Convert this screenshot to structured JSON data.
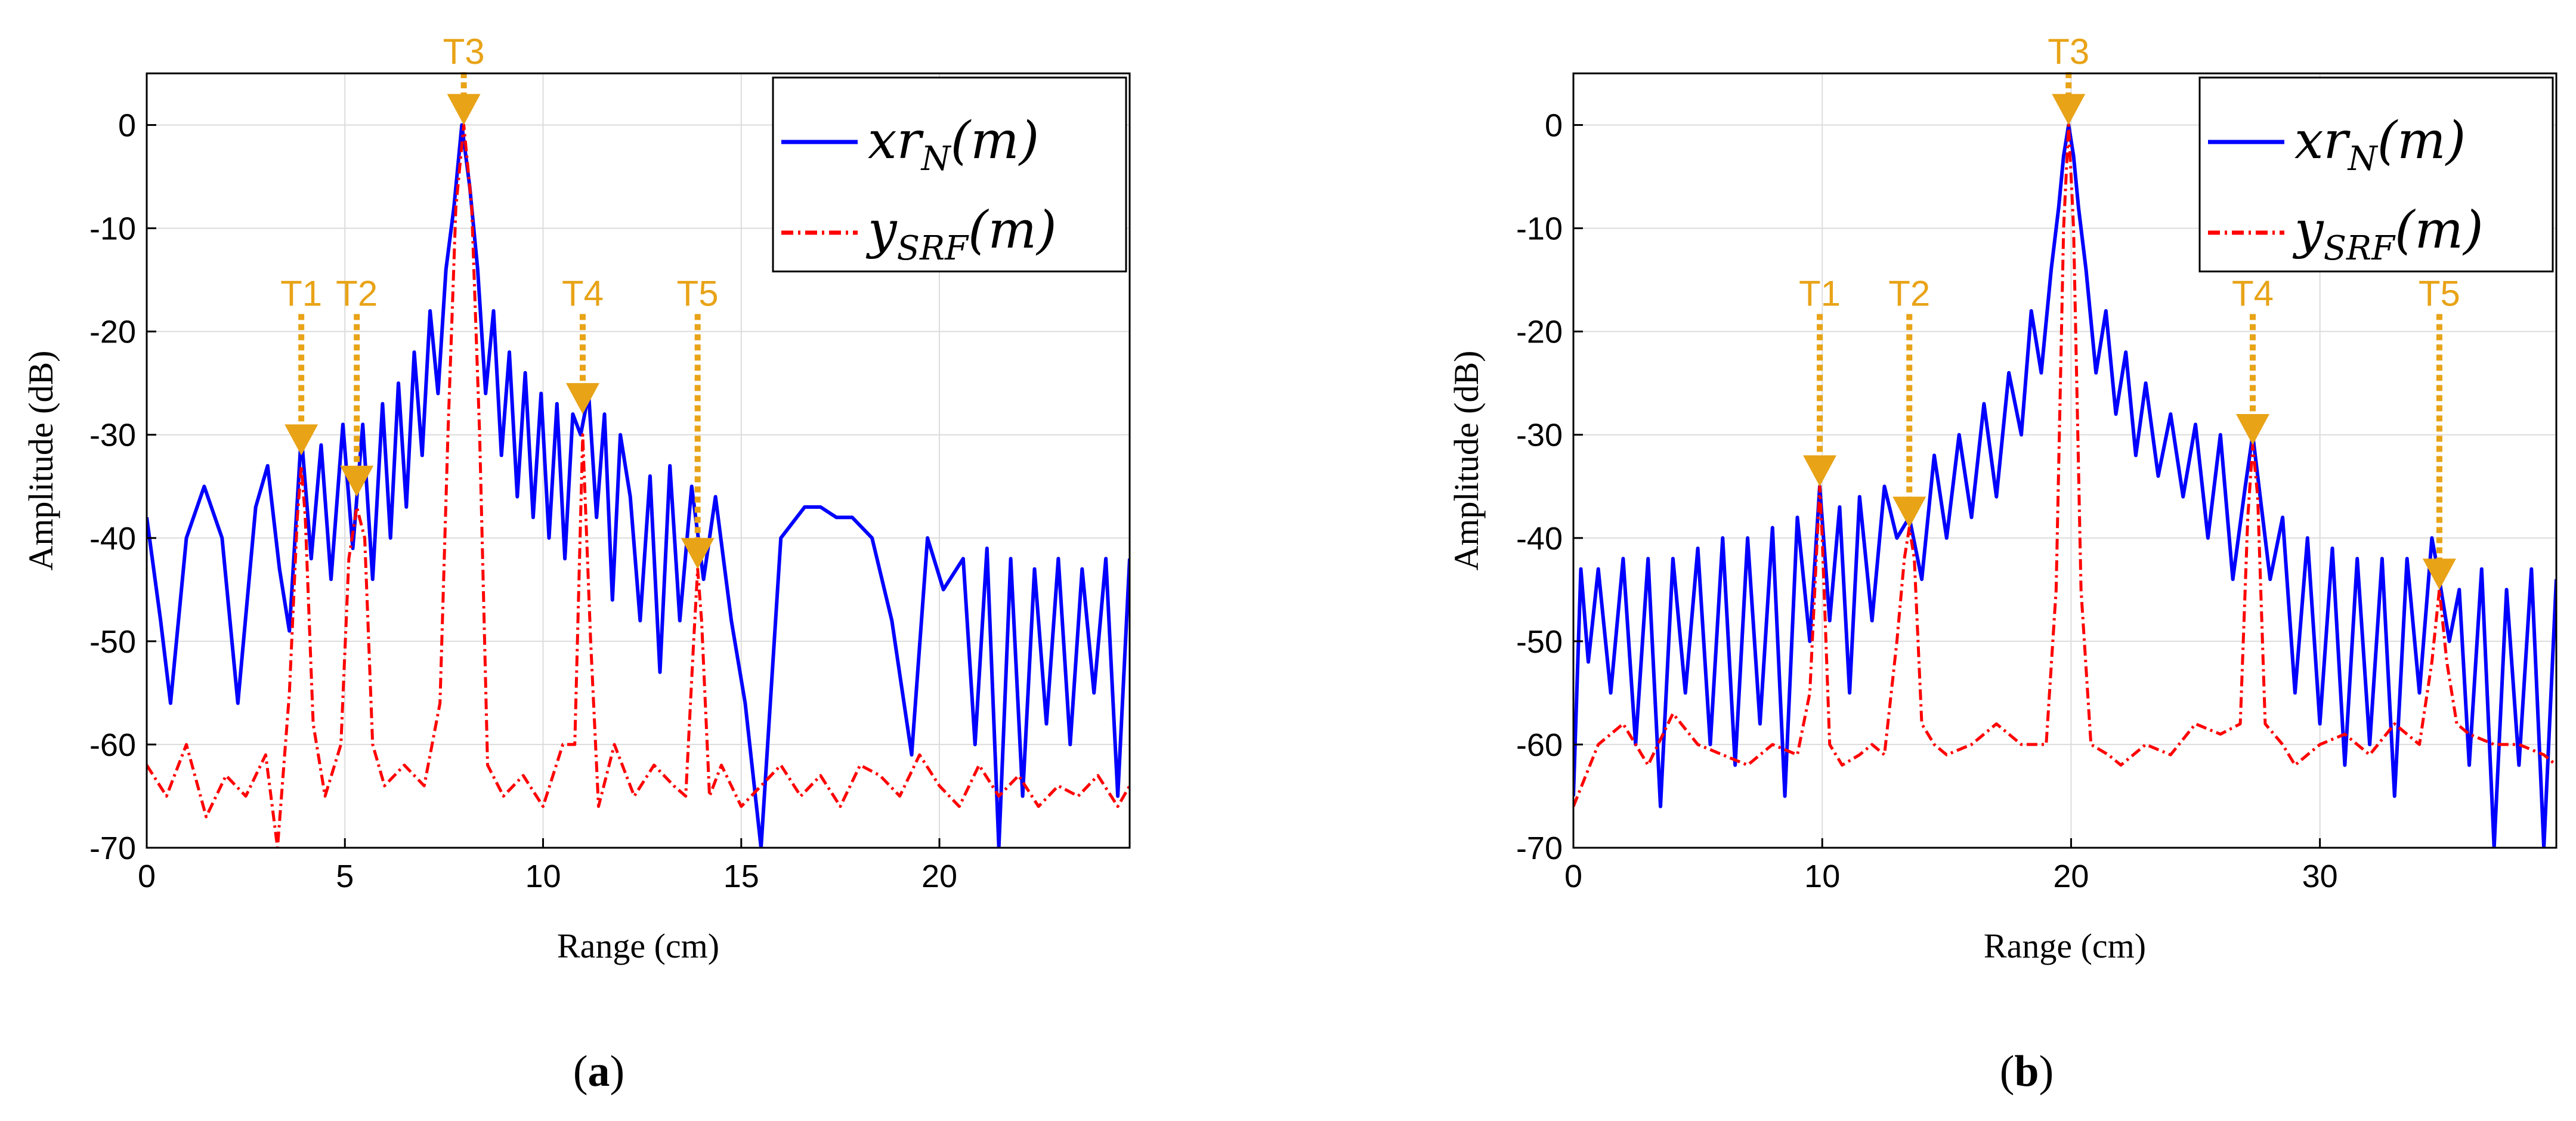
{
  "chart_data": [
    {
      "type": "line",
      "panel_label": "a",
      "xlabel": "Range (cm)",
      "ylabel": "Amplitude (dB)",
      "xlim": [
        0,
        24.8
      ],
      "ylim": [
        -70,
        5
      ],
      "xticks": [
        0,
        5,
        10,
        15,
        20
      ],
      "yticks": [
        0,
        -10,
        -20,
        -30,
        -40,
        -50,
        -60,
        -70
      ],
      "grid": true,
      "legend_position": "top-right",
      "legend": [
        {
          "name": "xr",
          "sub": "N",
          "arg": "(m)",
          "color": "#0000FF",
          "style": "solid"
        },
        {
          "name": "y",
          "sub": "SRF",
          "arg": "(m)",
          "color": "#FF0000",
          "style": "dash-dot"
        }
      ],
      "markers": [
        {
          "label": "T1",
          "x": 3.9,
          "y": -32
        },
        {
          "label": "T2",
          "x": 5.3,
          "y": -36
        },
        {
          "label": "T3",
          "x": 8.0,
          "y": 0
        },
        {
          "label": "T4",
          "x": 11.0,
          "y": -28
        },
        {
          "label": "T5",
          "x": 13.9,
          "y": -43
        }
      ],
      "series": [
        {
          "name": "xr_N(m)",
          "color": "#0000FF",
          "x": [
            0,
            0.35,
            0.6,
            1.0,
            1.45,
            1.9,
            2.3,
            2.75,
            3.05,
            3.35,
            3.6,
            3.9,
            4.15,
            4.4,
            4.65,
            4.95,
            5.2,
            5.45,
            5.7,
            5.95,
            6.15,
            6.35,
            6.55,
            6.75,
            6.95,
            7.15,
            7.35,
            7.55,
            7.75,
            7.95,
            8.15,
            8.35,
            8.55,
            8.75,
            8.95,
            9.15,
            9.35,
            9.55,
            9.75,
            9.95,
            10.15,
            10.35,
            10.55,
            10.75,
            10.95,
            11.15,
            11.35,
            11.55,
            11.75,
            11.95,
            12.2,
            12.45,
            12.7,
            12.95,
            13.2,
            13.45,
            13.75,
            14.05,
            14.35,
            14.75,
            15.1,
            15.5,
            16.0,
            16.6,
            17.0,
            17.4,
            17.8,
            18.3,
            18.8,
            19.3,
            19.7,
            20.1,
            20.6,
            20.9,
            21.2,
            21.5,
            21.8,
            22.1,
            22.4,
            22.7,
            23.0,
            23.3,
            23.6,
            23.9,
            24.2,
            24.5,
            24.8
          ],
          "values": [
            -38,
            -48,
            -56,
            -40,
            -35,
            -40,
            -56,
            -37,
            -33,
            -43,
            -49,
            -30,
            -42,
            -31,
            -44,
            -29,
            -41,
            -29,
            -44,
            -27,
            -40,
            -25,
            -37,
            -22,
            -32,
            -18,
            -26,
            -14,
            -8,
            0,
            -6,
            -14,
            -26,
            -18,
            -32,
            -22,
            -36,
            -24,
            -38,
            -26,
            -40,
            -27,
            -42,
            -28,
            -30,
            -26,
            -38,
            -28,
            -46,
            -30,
            -36,
            -48,
            -34,
            -53,
            -33,
            -48,
            -35,
            -44,
            -36,
            -48,
            -56,
            -70,
            -40,
            -37,
            -37,
            -38,
            -38,
            -40,
            -48,
            -61,
            -40,
            -45,
            -42,
            -60,
            -41,
            -70,
            -42,
            -65,
            -43,
            -58,
            -42,
            -60,
            -43,
            -55,
            -42,
            -65,
            -42
          ]
        },
        {
          "name": "y_SRF(m)",
          "color": "#FF0000",
          "x": [
            0,
            0.5,
            1.0,
            1.5,
            2.0,
            2.5,
            3.0,
            3.3,
            3.6,
            3.8,
            3.9,
            4.0,
            4.2,
            4.5,
            4.9,
            5.1,
            5.3,
            5.5,
            5.7,
            6.0,
            6.5,
            7.0,
            7.4,
            7.6,
            7.8,
            8.0,
            8.2,
            8.4,
            8.6,
            9.0,
            9.5,
            10.0,
            10.5,
            10.8,
            11.0,
            11.2,
            11.4,
            11.8,
            12.3,
            12.8,
            13.3,
            13.6,
            13.8,
            13.9,
            14.0,
            14.2,
            14.5,
            15.0,
            15.5,
            16.0,
            16.5,
            17.0,
            17.5,
            18.0,
            18.5,
            19.0,
            19.5,
            20.0,
            20.5,
            21.0,
            21.5,
            22.0,
            22.5,
            23.0,
            23.5,
            24.0,
            24.5,
            24.8
          ],
          "values": [
            -62,
            -65,
            -60,
            -67,
            -63,
            -65,
            -61,
            -70,
            -55,
            -38,
            -33,
            -38,
            -58,
            -65,
            -60,
            -42,
            -37,
            -40,
            -60,
            -64,
            -62,
            -64,
            -56,
            -30,
            -8,
            0,
            -8,
            -30,
            -62,
            -65,
            -63,
            -66,
            -60,
            -60,
            -30,
            -50,
            -66,
            -60,
            -65,
            -62,
            -64,
            -65,
            -50,
            -43,
            -48,
            -65,
            -62,
            -66,
            -64,
            -62,
            -65,
            -63,
            -66,
            -62,
            -63,
            -65,
            -61,
            -64,
            -66,
            -62,
            -65,
            -63,
            -66,
            -64,
            -65,
            -63,
            -66,
            -64
          ]
        }
      ]
    },
    {
      "type": "line",
      "panel_label": "b",
      "xlabel": "Range (cm)",
      "ylabel": "Amplitude (dB)",
      "xlim": [
        0,
        39.5
      ],
      "ylim": [
        -70,
        5
      ],
      "xticks": [
        0,
        10,
        20,
        30
      ],
      "yticks": [
        0,
        -10,
        -20,
        -30,
        -40,
        -50,
        -60,
        -70
      ],
      "grid": true,
      "legend_position": "top-right",
      "legend": [
        {
          "name": "xr",
          "sub": "N",
          "arg": "(m)",
          "color": "#0000FF",
          "style": "solid"
        },
        {
          "name": "y",
          "sub": "SRF",
          "arg": "(m)",
          "color": "#FF0000",
          "style": "dash-dot"
        }
      ],
      "markers": [
        {
          "label": "T1",
          "x": 9.9,
          "y": -35
        },
        {
          "label": "T2",
          "x": 13.5,
          "y": -39
        },
        {
          "label": "T3",
          "x": 19.9,
          "y": 0
        },
        {
          "label": "T4",
          "x": 27.3,
          "y": -31
        },
        {
          "label": "T5",
          "x": 34.8,
          "y": -45
        }
      ],
      "series": [
        {
          "name": "xr_N(m)",
          "color": "#0000FF",
          "x": [
            0,
            0.3,
            0.6,
            1.0,
            1.5,
            2.0,
            2.5,
            3.0,
            3.5,
            4.0,
            4.5,
            5.0,
            5.5,
            6.0,
            6.5,
            7.0,
            7.5,
            8.0,
            8.5,
            9.0,
            9.5,
            9.9,
            10.3,
            10.7,
            11.1,
            11.5,
            12.0,
            12.5,
            13.0,
            13.5,
            14.0,
            14.5,
            15.0,
            15.5,
            16.0,
            16.5,
            17.0,
            17.5,
            18.0,
            18.4,
            18.8,
            19.2,
            19.5,
            19.7,
            19.9,
            20.1,
            20.3,
            20.6,
            21.0,
            21.4,
            21.8,
            22.2,
            22.6,
            23.0,
            23.5,
            24.0,
            24.5,
            25.0,
            25.5,
            26.0,
            26.5,
            27.0,
            27.3,
            27.6,
            28.0,
            28.5,
            29.0,
            29.5,
            30.0,
            30.5,
            31.0,
            31.5,
            32.0,
            32.5,
            33.0,
            33.5,
            34.0,
            34.5,
            34.8,
            35.2,
            35.6,
            36.0,
            36.5,
            37.0,
            37.5,
            38.0,
            38.5,
            39.0,
            39.5
          ],
          "values": [
            -65,
            -43,
            -52,
            -43,
            -55,
            -42,
            -60,
            -42,
            -66,
            -42,
            -55,
            -41,
            -60,
            -40,
            -62,
            -40,
            -58,
            -39,
            -65,
            -38,
            -50,
            -35,
            -48,
            -37,
            -55,
            -36,
            -48,
            -35,
            -40,
            -38,
            -44,
            -32,
            -40,
            -30,
            -38,
            -27,
            -36,
            -24,
            -30,
            -18,
            -24,
            -14,
            -8,
            -3,
            0,
            -3,
            -8,
            -14,
            -24,
            -18,
            -28,
            -22,
            -32,
            -25,
            -34,
            -28,
            -36,
            -29,
            -40,
            -30,
            -44,
            -35,
            -30,
            -36,
            -44,
            -38,
            -55,
            -40,
            -58,
            -41,
            -62,
            -42,
            -60,
            -42,
            -65,
            -42,
            -55,
            -40,
            -44,
            -50,
            -45,
            -62,
            -43,
            -70,
            -45,
            -62,
            -43,
            -70,
            -44
          ]
        },
        {
          "name": "y_SRF(m)",
          "color": "#FF0000",
          "x": [
            0,
            1.0,
            2.0,
            3.0,
            4.0,
            5.0,
            6.0,
            7.0,
            8.0,
            9.0,
            9.5,
            9.8,
            9.9,
            10.0,
            10.3,
            10.8,
            11.5,
            12.0,
            12.5,
            13.0,
            13.3,
            13.5,
            13.7,
            14.0,
            14.5,
            15.0,
            16.0,
            17.0,
            18.0,
            19.0,
            19.4,
            19.7,
            19.9,
            20.1,
            20.4,
            20.8,
            21.5,
            22.0,
            23.0,
            24.0,
            25.0,
            26.0,
            26.8,
            27.1,
            27.3,
            27.5,
            27.8,
            28.5,
            29.0,
            30.0,
            31.0,
            32.0,
            33.0,
            34.0,
            34.5,
            34.8,
            35.1,
            35.5,
            36.0,
            37.0,
            38.0,
            39.0,
            39.5
          ],
          "values": [
            -66,
            -60,
            -58,
            -62,
            -57,
            -60,
            -61,
            -62,
            -60,
            -61,
            -55,
            -40,
            -35,
            -40,
            -60,
            -62,
            -61,
            -60,
            -61,
            -50,
            -42,
            -39,
            -42,
            -58,
            -60,
            -61,
            -60,
            -58,
            -60,
            -60,
            -45,
            -10,
            0,
            -10,
            -45,
            -60,
            -61,
            -62,
            -60,
            -61,
            -58,
            -59,
            -58,
            -38,
            -31,
            -36,
            -58,
            -60,
            -62,
            -60,
            -59,
            -61,
            -58,
            -60,
            -52,
            -45,
            -52,
            -58,
            -59,
            -60,
            -60,
            -61,
            -62
          ]
        }
      ]
    }
  ]
}
